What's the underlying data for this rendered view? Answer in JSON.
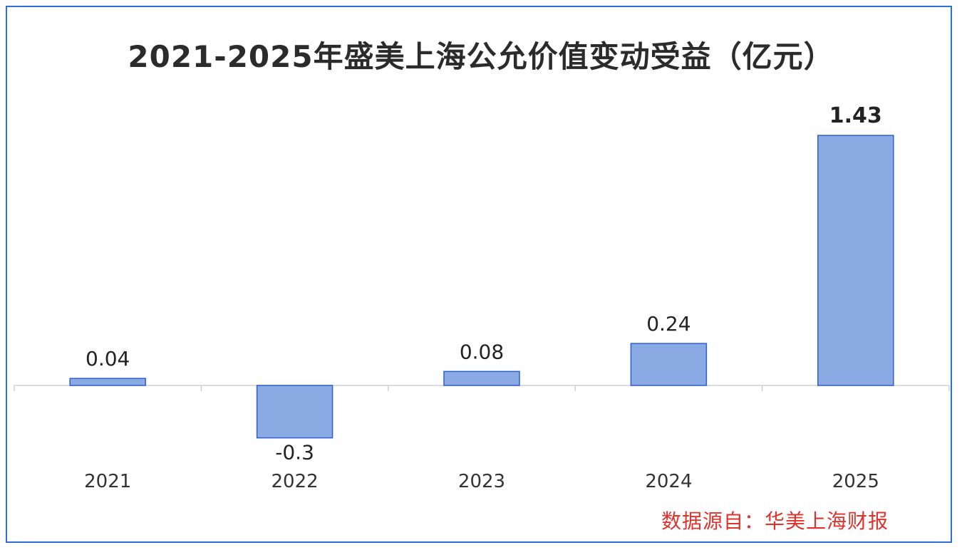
{
  "chart_data": {
    "type": "bar",
    "title": "2021-2025年盛美上海公允价值变动受益（亿元）",
    "categories": [
      "2021",
      "2022",
      "2023",
      "2024",
      "2025"
    ],
    "series": [
      {
        "values": [
          0.04,
          -0.3,
          0.08,
          0.24,
          1.43
        ],
        "data_labels": [
          "0.04",
          "-0.3",
          "0.08",
          "0.24",
          "1.43"
        ]
      }
    ],
    "xlabel": "",
    "ylabel": "",
    "ylim": [
      -0.3,
      1.43
    ],
    "grid": false,
    "legend": "none",
    "y_axis_visible": false,
    "bar_color": "#8aaae3",
    "bar_border_color": "#2f5fcf",
    "axis_color": "#d0d0d0",
    "emphasized_label_index": 4
  },
  "source_note": "数据源自：华美上海财报",
  "colors": {
    "frame_border": "#2f6fd1",
    "title_text": "#2b2b2b",
    "source_text": "#e0322b",
    "tick_text": "#333333"
  }
}
